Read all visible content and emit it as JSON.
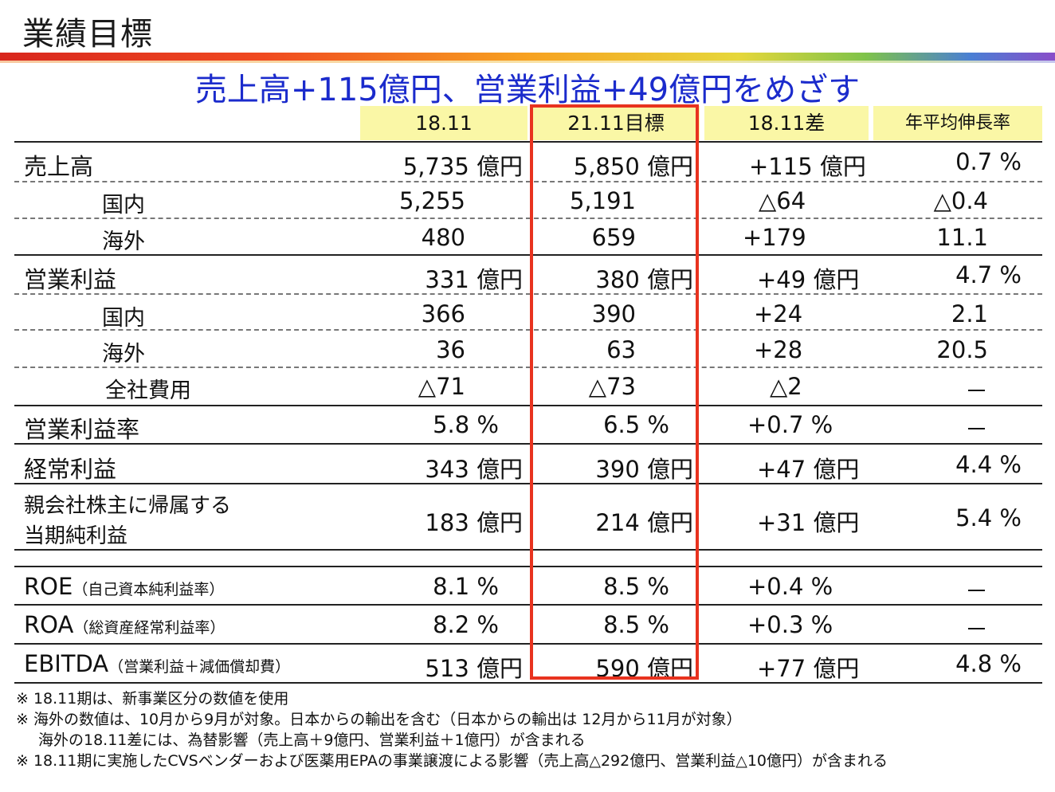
{
  "title": "業績目標",
  "subtitle": "売上高+115億円、営業利益+49億円をめざす",
  "headers": [
    "18.11",
    "21.11目標",
    "18.11差",
    "年平均伸長率"
  ],
  "rows": [
    {
      "label": "売上高",
      "c1": "5,735 億円",
      "c2": "5,850 億円",
      "c3": "+115 億円",
      "c4": "0.7 %"
    },
    {
      "label": "国内",
      "c1": "5,255",
      "c2": "5,191",
      "c3": "△64",
      "c4": "△0.4"
    },
    {
      "label": "海外",
      "c1": "480",
      "c2": "659",
      "c3": "+179",
      "c4": "11.1"
    },
    {
      "label": "営業利益",
      "c1": "331 億円",
      "c2": "380 億円",
      "c3": "+49 億円",
      "c4": "4.7 %"
    },
    {
      "label": "国内",
      "c1": "366",
      "c2": "390",
      "c3": "+24",
      "c4": "2.1"
    },
    {
      "label": "海外",
      "c1": "36",
      "c2": "63",
      "c3": "+28",
      "c4": "20.5"
    },
    {
      "label": "全社費用",
      "c1": "△71",
      "c2": "△73",
      "c3": "△2",
      "c4": "－"
    },
    {
      "label": "営業利益率",
      "c1": "5.8 %",
      "c2": "6.5 %",
      "c3": "+0.7 %",
      "c4": "－"
    },
    {
      "label": "経常利益",
      "c1": "343 億円",
      "c2": "390 億円",
      "c3": "+47 億円",
      "c4": "4.4 %"
    },
    {
      "label1": "親会社株主に帰属する",
      "label2": "当期純利益",
      "c1": "183 億円",
      "c2": "214 億円",
      "c3": "+31 億円",
      "c4": "5.4 %"
    },
    {
      "label": "ROE",
      "note": "（自己資本純利益率）",
      "c1": "8.1 %",
      "c2": "8.5 %",
      "c3": "+0.4 %",
      "c4": "－"
    },
    {
      "label": "ROA",
      "note": "（総資産経常利益率）",
      "c1": "8.2 %",
      "c2": "8.5 %",
      "c3": "+0.3 %",
      "c4": "－"
    },
    {
      "label": "EBITDA",
      "note": "（営業利益＋減価償却費）",
      "c1": "513 億円",
      "c2": "590 億円",
      "c3": "+77 億円",
      "c4": "4.8 %"
    }
  ],
  "notes": [
    "※ 18.11期は、新事業区分の数値を使用",
    "※ 海外の数値は、10月から9月が対象。日本からの輸出を含む（日本からの輸出は 12月から11月が対象）",
    "海外の18.11差には、為替影響（売上高＋9億円、営業利益＋1億円）が含まれる",
    "※ 18.11期に実施したCVSベンダーおよび医薬用EPAの事業譲渡による影響（売上高△292億円、営業利益△10億円）が含まれる"
  ]
}
